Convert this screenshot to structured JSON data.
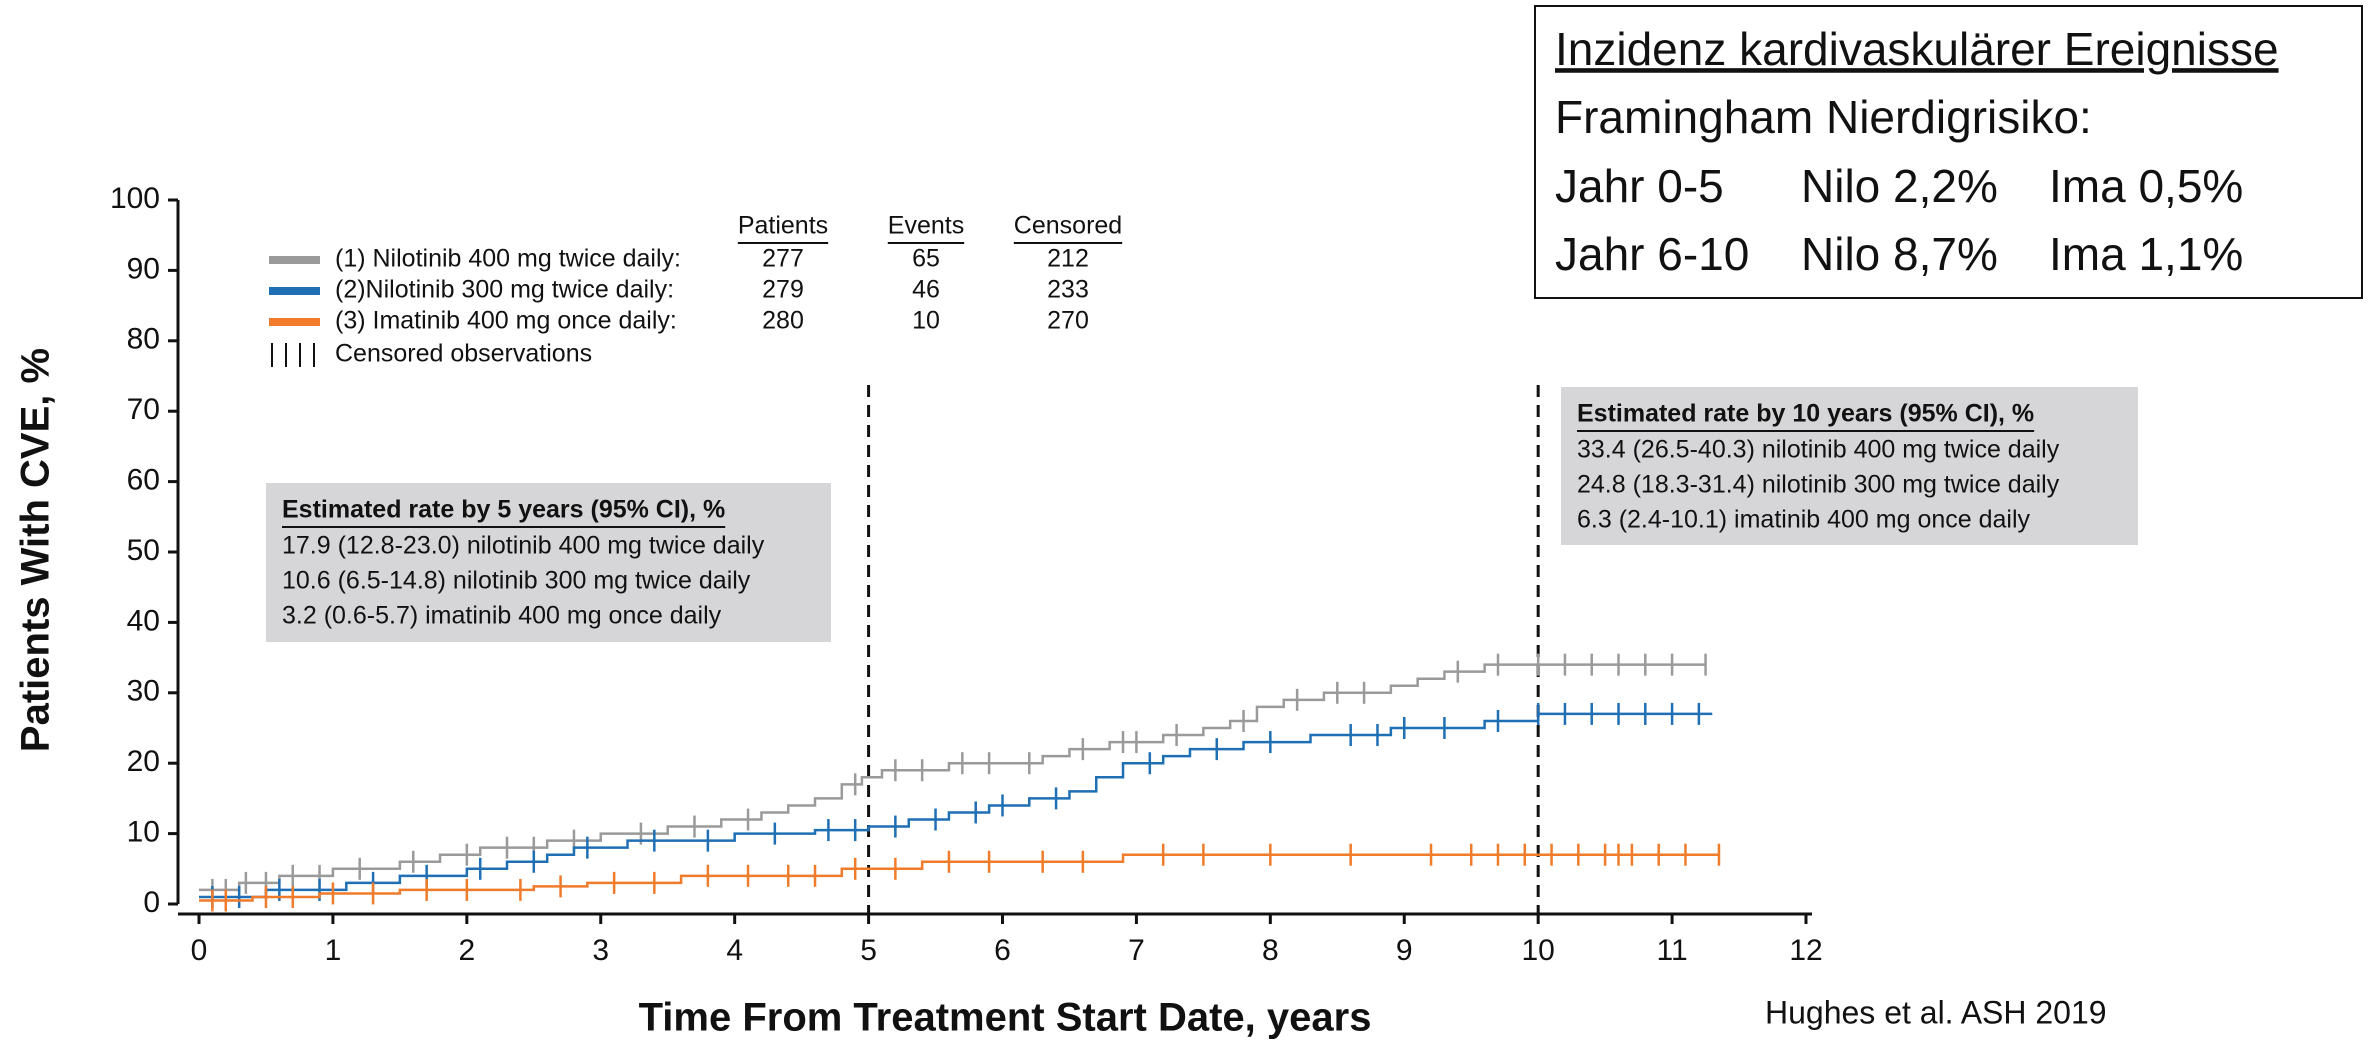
{
  "chart_data": {
    "type": "step",
    "xlabel": "Time From Treatment Start Date, years",
    "ylabel": "Patients With CVE, %",
    "xlim": [
      0,
      12
    ],
    "ylim": [
      0,
      100
    ],
    "xticks": [
      0,
      1,
      2,
      3,
      4,
      5,
      6,
      7,
      8,
      9,
      10,
      11,
      12
    ],
    "yticks": [
      0,
      10,
      20,
      30,
      40,
      50,
      60,
      70,
      80,
      90,
      100
    ],
    "vlines": [
      5,
      10
    ],
    "table_headers": [
      "Patients",
      "Events",
      "Censored"
    ],
    "censor_label": "Censored observations",
    "series": [
      {
        "name": "(1) Nilotinib 400 mg twice daily:",
        "color": "#9a9a9a",
        "patients": "277",
        "events": "65",
        "censored": "212",
        "x": [
          0,
          0.3,
          0.6,
          1.0,
          1.5,
          1.8,
          2.1,
          2.6,
          3.0,
          3.5,
          3.9,
          4.2,
          4.4,
          4.6,
          4.8,
          4.95,
          5.1,
          5.6,
          6.3,
          6.5,
          6.8,
          7.2,
          7.5,
          7.7,
          7.9,
          8.1,
          8.4,
          8.9,
          9.1,
          9.3,
          9.6,
          11.25
        ],
        "values": [
          2,
          3,
          4,
          5,
          6,
          7,
          8,
          9,
          10,
          11,
          12,
          13,
          14,
          15,
          17,
          18,
          19,
          20,
          21,
          22,
          23,
          24,
          25,
          26,
          28,
          29,
          30,
          31,
          32,
          33,
          34,
          34
        ],
        "censor_times": [
          0.1,
          0.2,
          0.35,
          0.5,
          0.7,
          0.9,
          1.2,
          1.6,
          2.0,
          2.3,
          2.5,
          2.8,
          3.3,
          3.7,
          4.1,
          4.9,
          5.2,
          5.4,
          5.7,
          5.9,
          6.2,
          6.6,
          6.9,
          7.0,
          7.3,
          7.8,
          8.2,
          8.5,
          8.7,
          9.4,
          9.7,
          10.0,
          10.2,
          10.4,
          10.6,
          10.8,
          11.0,
          11.25
        ]
      },
      {
        "name": "(2)Nilotinib 300 mg twice daily:",
        "color": "#1f6fb5",
        "patients": "279",
        "events": "46",
        "censored": "233",
        "x": [
          0,
          0.5,
          1.1,
          1.5,
          2.0,
          2.3,
          2.6,
          2.8,
          3.2,
          4.0,
          4.6,
          5.0,
          5.3,
          5.6,
          5.9,
          6.2,
          6.5,
          6.7,
          6.9,
          7.2,
          7.4,
          7.8,
          8.3,
          8.9,
          9.6,
          10.0,
          11.3
        ],
        "values": [
          1,
          2,
          3,
          4,
          5,
          6,
          7,
          8,
          9,
          10,
          10.5,
          11,
          12,
          13,
          14,
          15,
          16,
          18,
          20,
          21,
          22,
          23,
          24,
          25,
          26,
          27,
          27
        ],
        "censor_times": [
          0.1,
          0.3,
          0.6,
          0.9,
          1.3,
          1.7,
          2.1,
          2.5,
          2.9,
          3.4,
          3.8,
          4.3,
          4.7,
          4.9,
          5.2,
          5.5,
          5.8,
          6.0,
          6.4,
          7.1,
          7.6,
          8.0,
          8.6,
          8.8,
          9.0,
          9.3,
          9.7,
          10.0,
          10.2,
          10.4,
          10.6,
          10.8,
          11.0,
          11.2
        ]
      },
      {
        "name": "(3) Imatinib 400 mg once daily:",
        "color": "#f07b2a",
        "patients": "280",
        "events": "10",
        "censored": "270",
        "x": [
          0,
          0.4,
          0.9,
          1.5,
          2.5,
          2.9,
          3.6,
          4.8,
          5.4,
          6.9,
          11.35
        ],
        "values": [
          0.5,
          1,
          1.5,
          2,
          2.5,
          3,
          4,
          5,
          6,
          7,
          7
        ],
        "censor_times": [
          0.1,
          0.2,
          0.5,
          0.7,
          1.0,
          1.3,
          1.7,
          2.0,
          2.4,
          2.7,
          3.1,
          3.4,
          3.8,
          4.1,
          4.4,
          4.6,
          4.9,
          5.2,
          5.6,
          5.9,
          6.3,
          6.6,
          7.2,
          7.5,
          8.0,
          8.6,
          9.2,
          9.5,
          9.7,
          9.9,
          10.1,
          10.3,
          10.5,
          10.6,
          10.7,
          10.9,
          11.1,
          11.35
        ]
      }
    ],
    "annotations": [
      {
        "title": "Estimated rate by 5 years (95% CI), %",
        "lines": [
          "17.9 (12.8-23.0) nilotinib 400 mg twice daily",
          "10.6 (6.5-14.8) nilotinib 300  mg twice daily",
          "3.2 (0.6-5.7) imatinib 400 mg once daily"
        ]
      },
      {
        "title": "Estimated rate by 10 years (95% CI), %",
        "lines": [
          "33.4 (26.5-40.3) nilotinib 400 mg twice daily",
          "24.8 (18.3-31.4) nilotinib 300 mg twice daily",
          "6.3 (2.4-10.1) imatinib 400 mg once daily"
        ]
      }
    ]
  },
  "info_box": {
    "title": "Inzidenz kardivaskulärer Ereignisse",
    "subtitle": "Framingham Nierdigrisiko:",
    "rows": [
      [
        "Jahr 0-5",
        "Nilo 2,2%",
        "Ima 0,5%"
      ],
      [
        "Jahr 6-10",
        "Nilo 8,7%",
        "Ima 1,1%"
      ]
    ]
  },
  "source": "Hughes et al. ASH 2019"
}
